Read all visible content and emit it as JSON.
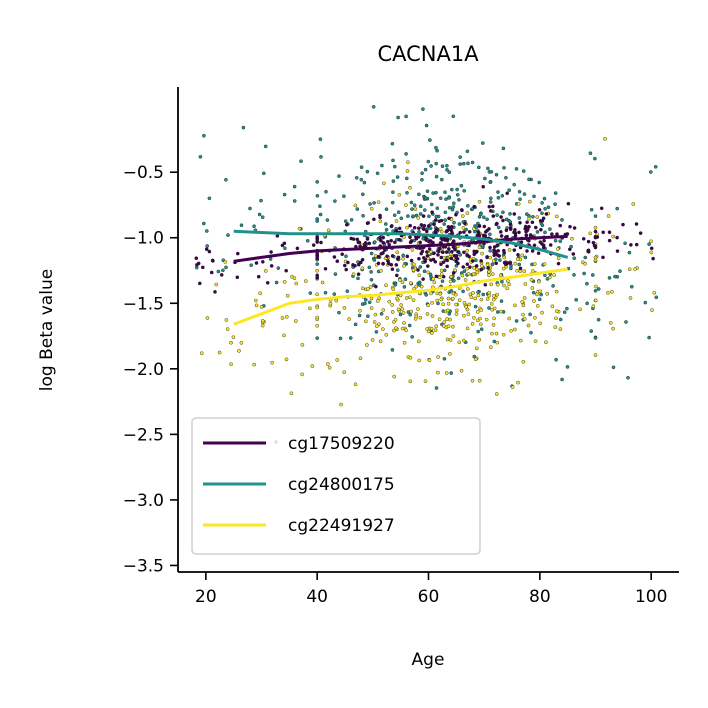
{
  "chart_data": {
    "type": "scatter",
    "title": "CACNA1A",
    "xlabel": "Age",
    "ylabel": "log Beta value",
    "xlim": [
      15,
      105
    ],
    "ylim": [
      -3.55,
      0.15
    ],
    "xticks": [
      20,
      40,
      60,
      80,
      100
    ],
    "yticks": [
      -0.5,
      -1.0,
      -1.5,
      -2.0,
      -2.5,
      -3.0,
      -3.5
    ],
    "xtick_labels": [
      "20",
      "40",
      "60",
      "80",
      "100"
    ],
    "ytick_labels": [
      "−0.5",
      "−1.0",
      "−1.5",
      "−2.0",
      "−2.5",
      "−3.0",
      "−3.5"
    ],
    "grid": false,
    "legend_position": "lower-left",
    "series": [
      {
        "name": "cg17509220",
        "color": "#440154",
        "center": -1.08,
        "spread": 0.11,
        "x_range": [
          18,
          101
        ],
        "trend_x": [
          25,
          30,
          35,
          40,
          45,
          50,
          55,
          60,
          65,
          70,
          75,
          80,
          85
        ],
        "trend_y": [
          -1.18,
          -1.15,
          -1.12,
          -1.1,
          -1.09,
          -1.08,
          -1.07,
          -1.06,
          -1.05,
          -1.03,
          -1.01,
          -1.0,
          -0.99
        ]
      },
      {
        "name": "cg24800175",
        "color": "#21918c",
        "center": -1.2,
        "spread": 0.38,
        "x_range": [
          18,
          101
        ],
        "trend_x": [
          25,
          30,
          35,
          40,
          45,
          50,
          55,
          60,
          65,
          70,
          75,
          80,
          85
        ],
        "trend_y": [
          -0.95,
          -0.96,
          -0.97,
          -0.97,
          -0.97,
          -0.97,
          -0.97,
          -0.98,
          -0.99,
          -1.01,
          -1.04,
          -1.09,
          -1.15
        ]
      },
      {
        "name": "cg22491927",
        "color": "#fde725",
        "center": -1.45,
        "spread": 0.32,
        "x_range": [
          18,
          101
        ],
        "trend_x": [
          25,
          30,
          35,
          40,
          45,
          50,
          55,
          60,
          65,
          70,
          75,
          80,
          85
        ],
        "trend_y": [
          -1.66,
          -1.58,
          -1.5,
          -1.47,
          -1.45,
          -1.44,
          -1.42,
          -1.4,
          -1.37,
          -1.33,
          -1.3,
          -1.27,
          -1.24
        ]
      }
    ]
  }
}
